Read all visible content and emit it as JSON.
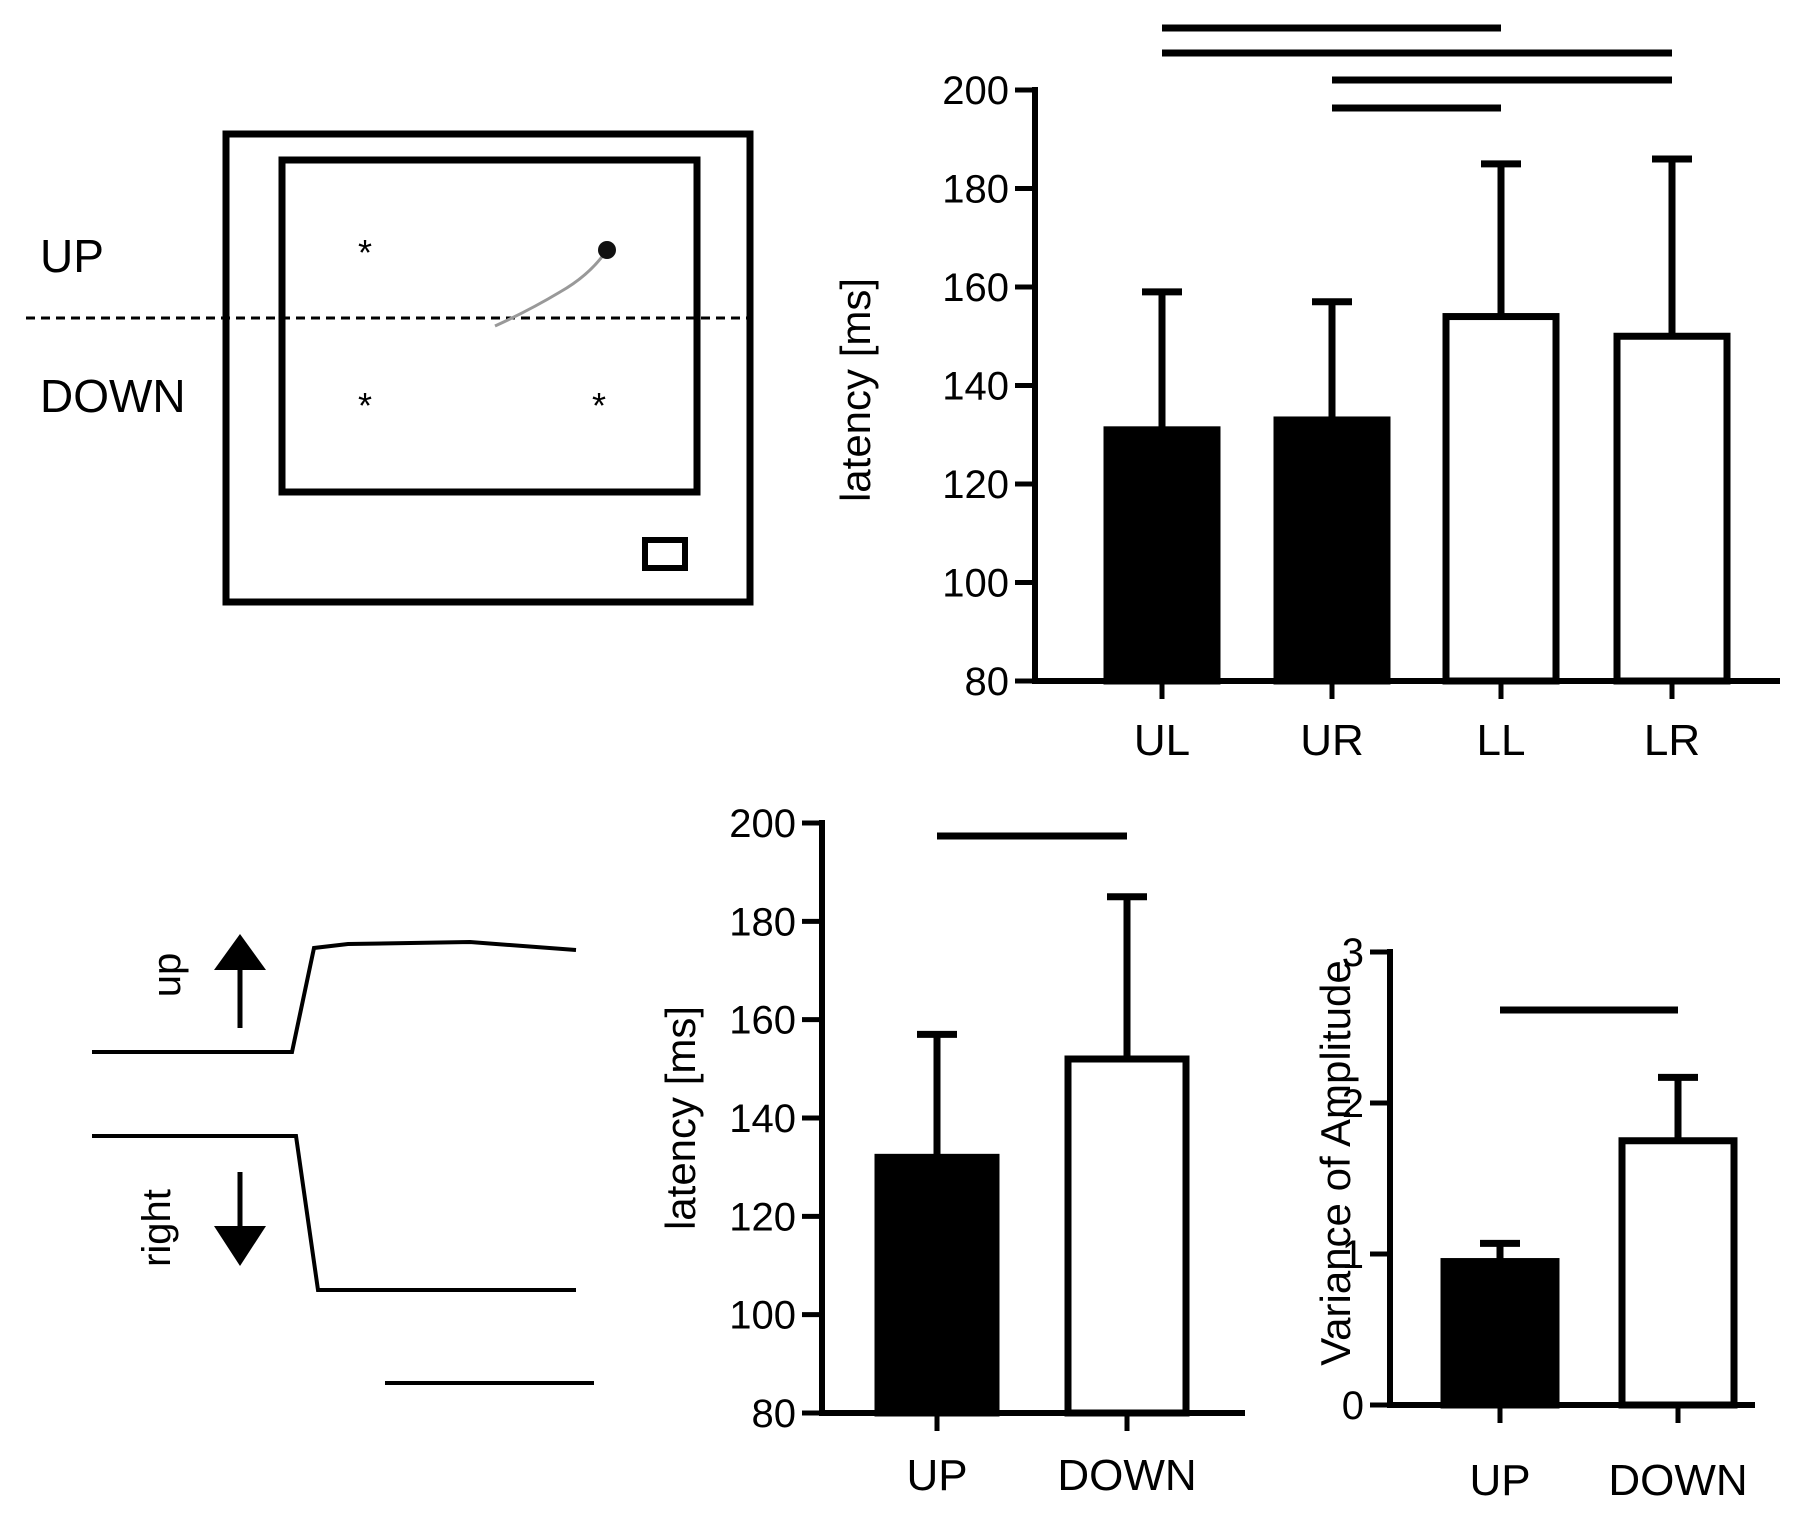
{
  "paradigm": {
    "labels": {
      "up": "UP",
      "down": "DOWN"
    },
    "target_marker": "*",
    "targets": [
      "upper-left",
      "lower-left",
      "lower-right"
    ],
    "icons": [
      "fixation-dot-icon",
      "saccade-trace-icon",
      "reward-box-icon"
    ]
  },
  "traces": {
    "up_label": "up",
    "right_label": "right",
    "icons": [
      "arrow-up-icon",
      "arrow-down-icon",
      "scale-bar-icon"
    ]
  },
  "chart_data": [
    {
      "id": "latency-by-target",
      "type": "bar",
      "title": "",
      "xlabel": "",
      "ylabel": "latency [ms]",
      "categories": [
        "UL",
        "UR",
        "LL",
        "LR"
      ],
      "values": [
        131,
        133,
        154,
        150
      ],
      "errors": [
        28,
        24,
        31,
        36
      ],
      "fill": [
        "#000000",
        "#000000",
        "#ffffff",
        "#ffffff"
      ],
      "ylim": [
        80,
        200
      ],
      "yticks": [
        "80",
        "100",
        "120",
        "140",
        "160",
        "180",
        "200"
      ],
      "significance": [
        [
          "UL",
          "LL"
        ],
        [
          "UL",
          "LR"
        ],
        [
          "UR",
          "LR"
        ],
        [
          "UR",
          "LL"
        ]
      ]
    },
    {
      "id": "latency-up-down",
      "type": "bar",
      "title": "",
      "xlabel": "",
      "ylabel": "latency [ms]",
      "categories": [
        "UP",
        "DOWN"
      ],
      "values": [
        132,
        152
      ],
      "errors": [
        25,
        33
      ],
      "fill": [
        "#000000",
        "#ffffff"
      ],
      "ylim": [
        80,
        200
      ],
      "yticks": [
        "80",
        "100",
        "120",
        "140",
        "160",
        "180",
        "200"
      ],
      "significance": [
        [
          "UP",
          "DOWN"
        ]
      ]
    },
    {
      "id": "amplitude-variance",
      "type": "bar",
      "title": "",
      "xlabel": "",
      "ylabel": "Variance of Amplitude",
      "categories": [
        "UP",
        "DOWN"
      ],
      "values": [
        0.95,
        1.75
      ],
      "errors": [
        0.12,
        0.42
      ],
      "fill": [
        "#000000",
        "#ffffff"
      ],
      "ylim": [
        0,
        3
      ],
      "yticks": [
        "0",
        "1",
        "2",
        "3"
      ],
      "significance": [
        [
          "UP",
          "DOWN"
        ]
      ]
    }
  ]
}
